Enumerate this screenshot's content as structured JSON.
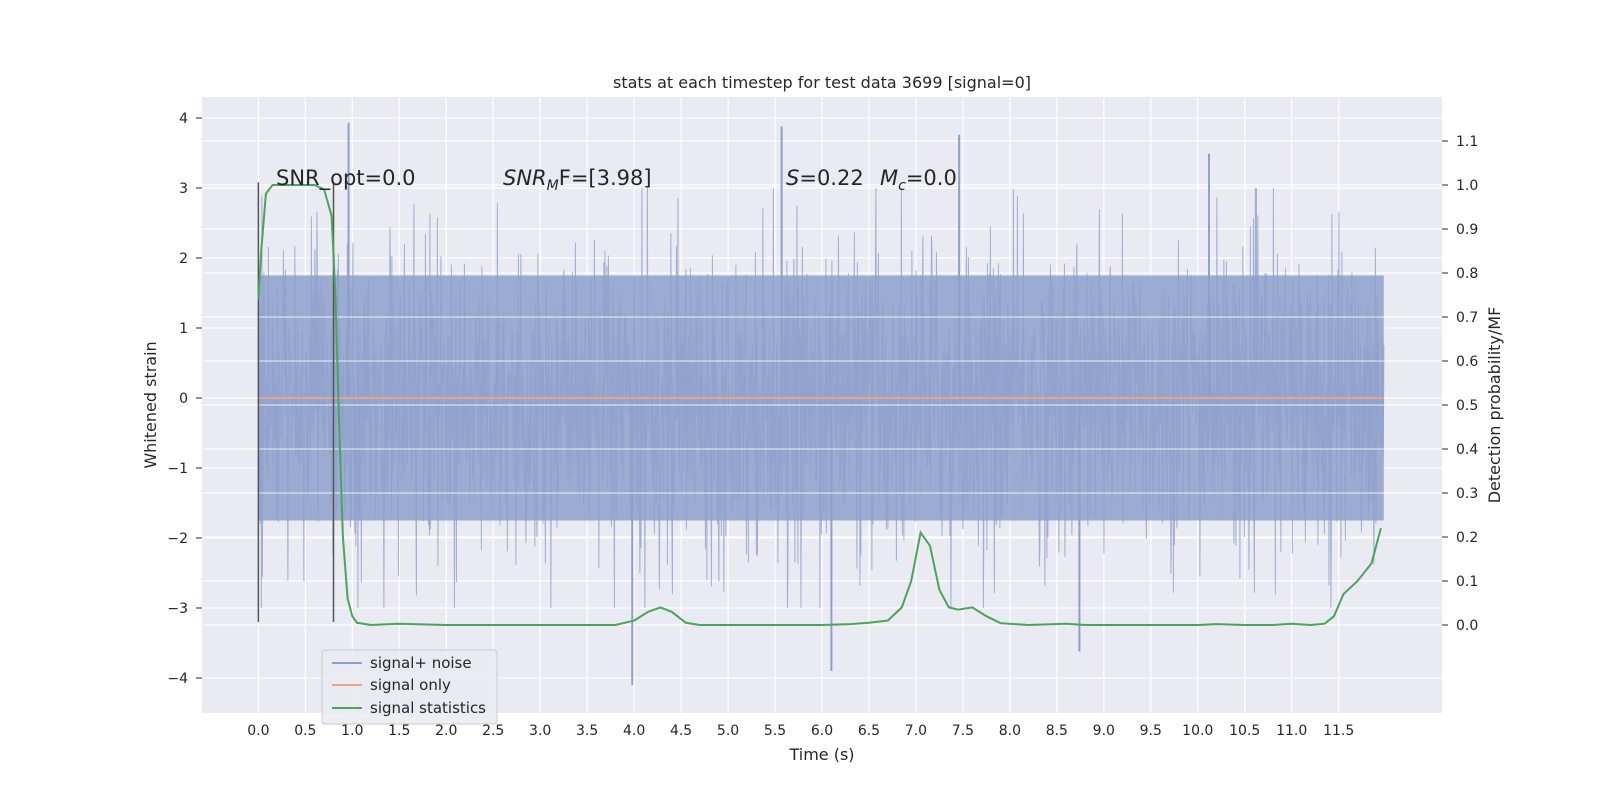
{
  "chart_data": {
    "type": "line",
    "title": "stats at each timestep for test data 3699 [signal=0]",
    "xlabel": "Time (s)",
    "ylabel_left": "Whitened strain",
    "ylabel_right": "Detection probability/MF",
    "xlim": [
      -0.6,
      12.6
    ],
    "ylim_left": [
      -4.5,
      4.3
    ],
    "ylim_right": [
      -0.2,
      1.2
    ],
    "x_ticks": [
      0.0,
      0.5,
      1.0,
      1.5,
      2.0,
      2.5,
      3.0,
      3.5,
      4.0,
      4.5,
      5.0,
      5.5,
      6.0,
      6.5,
      7.0,
      7.5,
      8.0,
      8.5,
      9.0,
      9.5,
      10.0,
      10.5,
      11.0,
      11.5
    ],
    "x_tick_labels": [
      "0.0",
      "0.5",
      "1.0",
      "1.5",
      "2.0",
      "2.5",
      "3.0",
      "3.5",
      "4.0",
      "4.5",
      "5.0",
      "5.5",
      "6.0",
      "6.5",
      "7.0",
      "7.5",
      "8.0",
      "8.5",
      "9.0",
      "9.5",
      "10.0",
      "10.5",
      "11.0",
      "11.5"
    ],
    "y_left_ticks": [
      -4,
      -3,
      -2,
      -1,
      0,
      1,
      2,
      3,
      4
    ],
    "y_left_tick_labels": [
      "−4",
      "−3",
      "−2",
      "−1",
      "0",
      "1",
      "2",
      "3",
      "4"
    ],
    "y_right_ticks": [
      0.0,
      0.1,
      0.2,
      0.3,
      0.4,
      0.5,
      0.6,
      0.7,
      0.8,
      0.9,
      1.0,
      1.1
    ],
    "y_right_tick_labels": [
      "0.0",
      "0.1",
      "0.2",
      "0.3",
      "0.4",
      "0.5",
      "0.6",
      "0.7",
      "0.8",
      "0.9",
      "1.0",
      "1.1"
    ],
    "grid": true,
    "legend_position": "lower-left",
    "annotations": {
      "snr_opt": "SNR_opt=0.0",
      "snr_mf_base": "SNR",
      "snr_mf_sub": "M",
      "snr_mf_tail": "F=[3.98]",
      "s_text": "S=0.22",
      "mc_base": "M",
      "mc_sub": "c",
      "mc_tail": "=0.0"
    },
    "window_markers": [
      0.0,
      0.8
    ],
    "series": [
      {
        "name": "signal+ noise",
        "axis": "left",
        "color": "#8da0cb",
        "x_range": [
          0.0,
          11.98
        ],
        "noise_amplitude": 2.2,
        "peak_x": [
          0.96,
          5.57,
          7.46,
          10.12,
          6.1,
          3.98,
          8.74
        ],
        "peak_y": [
          3.93,
          3.88,
          3.76,
          3.49,
          -3.9,
          -4.1,
          -3.62
        ]
      },
      {
        "name": "signal only",
        "axis": "left",
        "color": "#e5a58a",
        "x": [
          0.0,
          11.98
        ],
        "y": [
          0.0,
          0.0
        ]
      },
      {
        "name": "signal statistics",
        "axis": "right",
        "color": "#4aa55b",
        "x": [
          0.0,
          0.03,
          0.08,
          0.15,
          0.25,
          0.4,
          0.6,
          0.7,
          0.78,
          0.82,
          0.86,
          0.9,
          0.95,
          1.0,
          1.05,
          1.2,
          1.5,
          2.0,
          2.5,
          3.0,
          3.5,
          3.8,
          4.0,
          4.15,
          4.28,
          4.4,
          4.55,
          4.7,
          5.0,
          5.5,
          6.0,
          6.3,
          6.5,
          6.7,
          6.85,
          6.95,
          7.05,
          7.15,
          7.25,
          7.35,
          7.45,
          7.6,
          7.75,
          7.9,
          8.2,
          8.6,
          8.8,
          9.2,
          9.6,
          10.0,
          10.2,
          10.5,
          10.8,
          11.0,
          11.2,
          11.35,
          11.45,
          11.55,
          11.7,
          11.85,
          11.95
        ],
        "y": [
          0.74,
          0.85,
          0.98,
          1.0,
          1.0,
          1.0,
          1.0,
          0.99,
          0.93,
          0.75,
          0.45,
          0.2,
          0.06,
          0.02,
          0.005,
          0.0,
          0.003,
          0.0,
          0.0,
          0.0,
          0.0,
          0.0,
          0.01,
          0.03,
          0.04,
          0.03,
          0.005,
          0.0,
          0.0,
          0.0,
          0.0,
          0.002,
          0.005,
          0.01,
          0.04,
          0.1,
          0.21,
          0.18,
          0.08,
          0.04,
          0.035,
          0.04,
          0.02,
          0.004,
          0.0,
          0.003,
          0.0,
          0.0,
          0.0,
          0.0,
          0.002,
          0.0,
          0.0,
          0.003,
          0.0,
          0.003,
          0.02,
          0.07,
          0.1,
          0.14,
          0.22
        ]
      }
    ]
  }
}
